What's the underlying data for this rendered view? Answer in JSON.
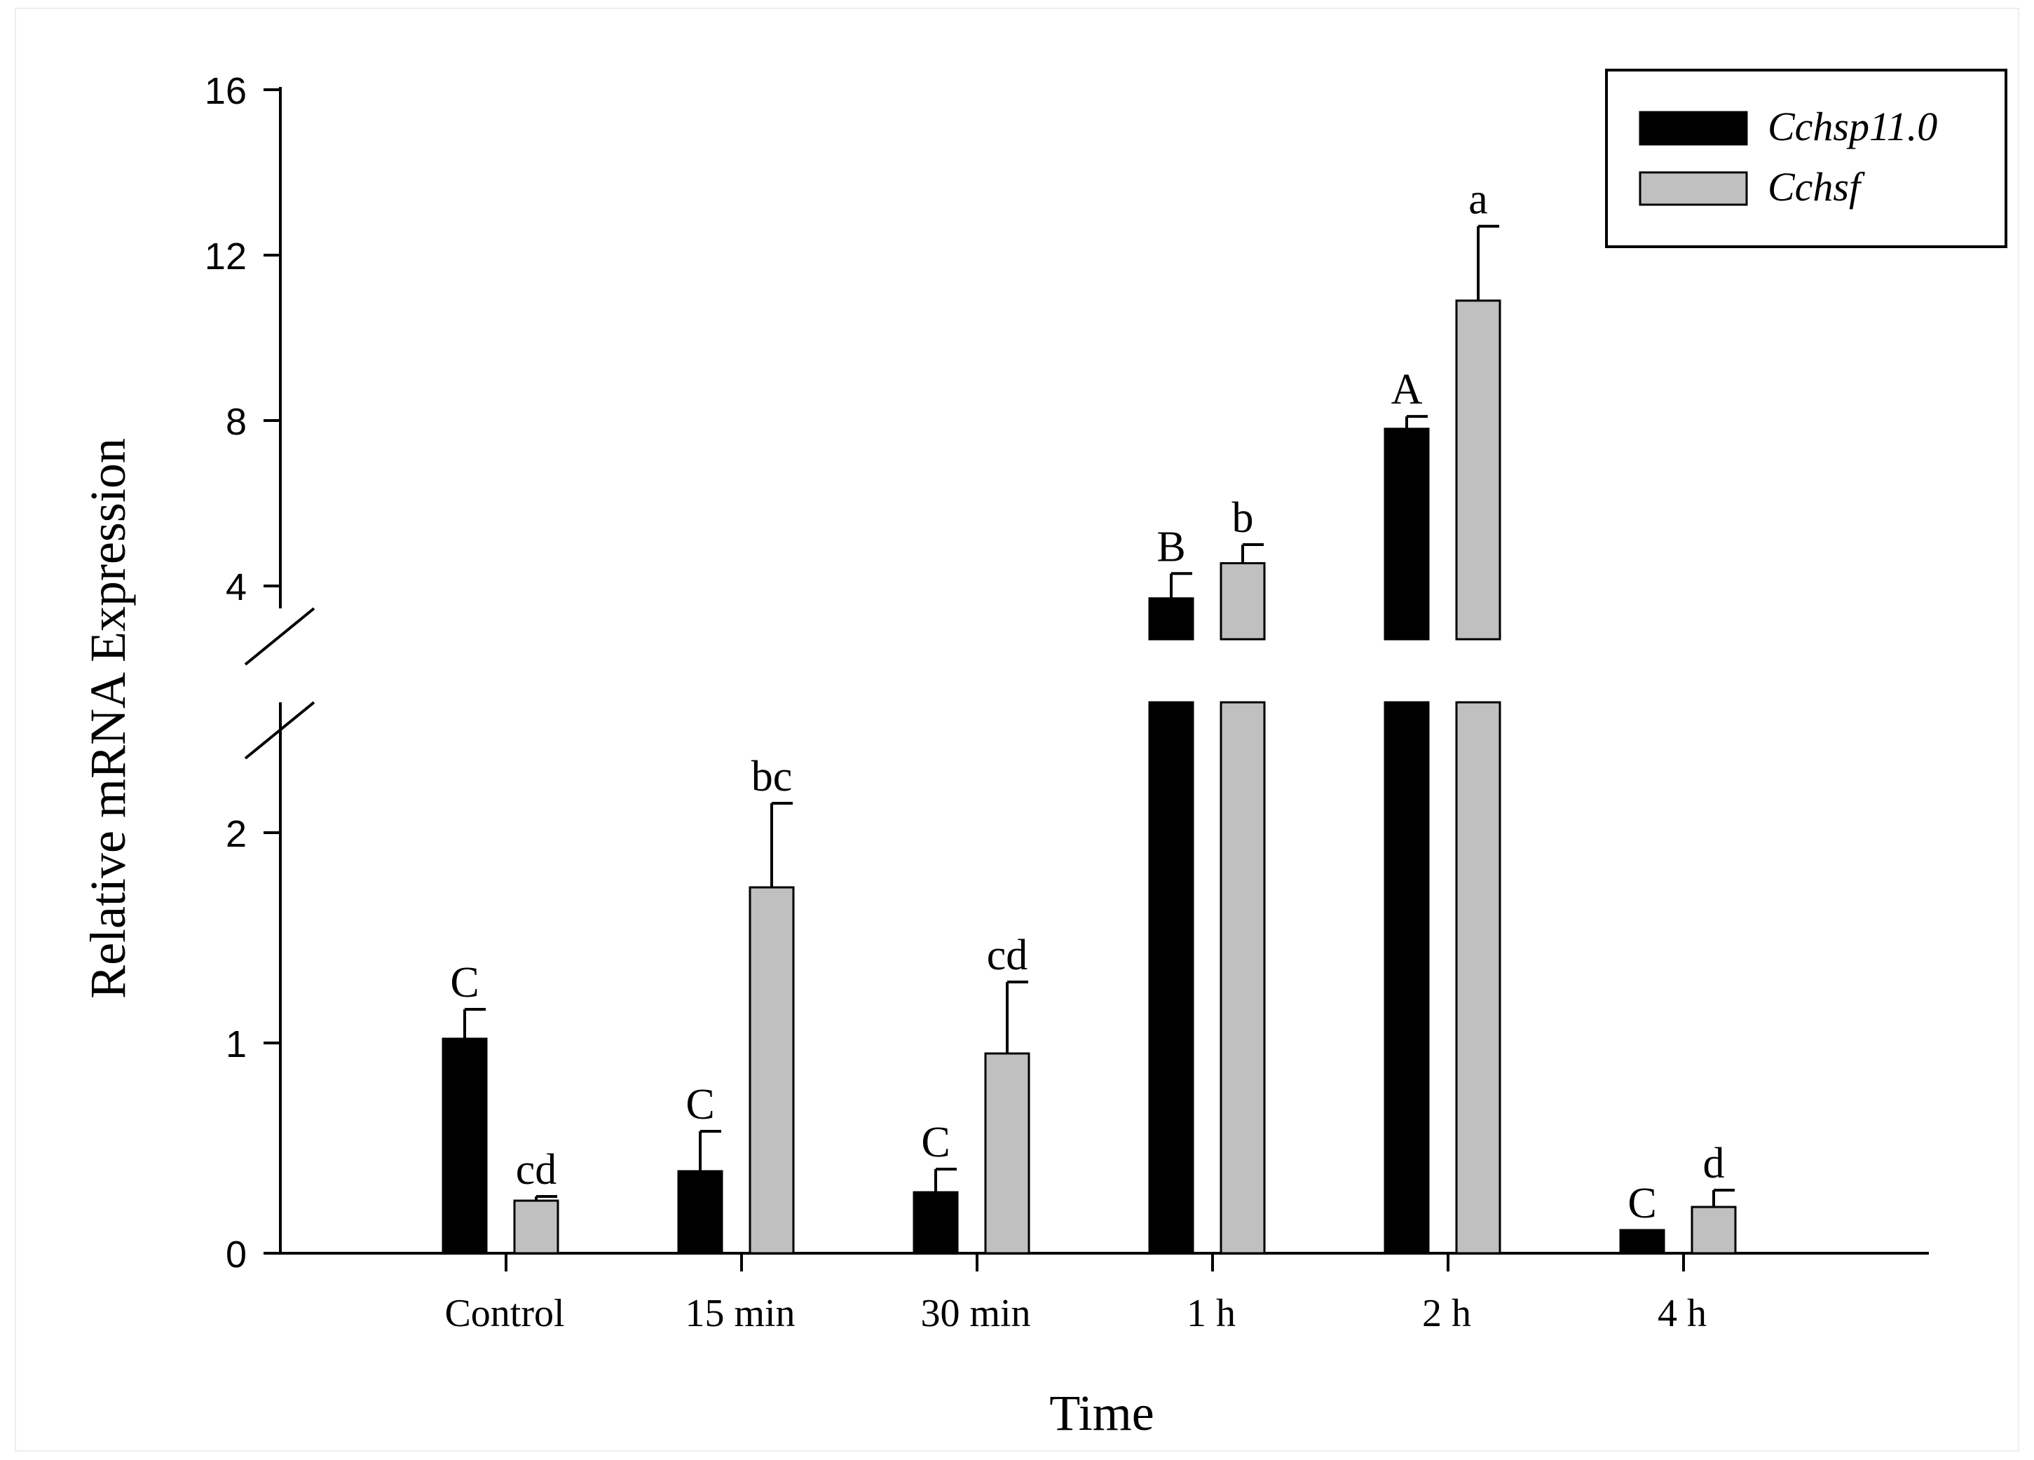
{
  "chart_data": {
    "type": "bar",
    "xlabel": "Time",
    "ylabel": "Relative mRNA Expression",
    "categories": [
      "Control",
      "15 min",
      "30 min",
      "1 h",
      "2 h",
      "4 h"
    ],
    "axis_break": {
      "lower_range": [
        0,
        2.6
      ],
      "upper_range": [
        2.8,
        16
      ]
    },
    "y_ticks_lower": [
      "0",
      "1",
      "2"
    ],
    "y_ticks_upper": [
      "4",
      "8",
      "12",
      "16"
    ],
    "legend_position": "top-right",
    "series": [
      {
        "name": "Cchsp11.0",
        "color": "#000000",
        "values": [
          1.02,
          0.39,
          0.29,
          3.7,
          7.8,
          0.11
        ],
        "errors": [
          0.14,
          0.19,
          0.11,
          0.6,
          0.3,
          0.0
        ],
        "letters": [
          "C",
          "C",
          "C",
          "B",
          "A",
          "C"
        ]
      },
      {
        "name": "Cchsf",
        "color": "#c0c0c0",
        "values": [
          0.25,
          1.74,
          0.95,
          4.55,
          10.9,
          0.22
        ],
        "errors": [
          0.02,
          0.4,
          0.34,
          0.45,
          1.8,
          0.08
        ],
        "letters": [
          "cd",
          "bc",
          "cd",
          "b",
          "a",
          "d"
        ]
      }
    ]
  }
}
